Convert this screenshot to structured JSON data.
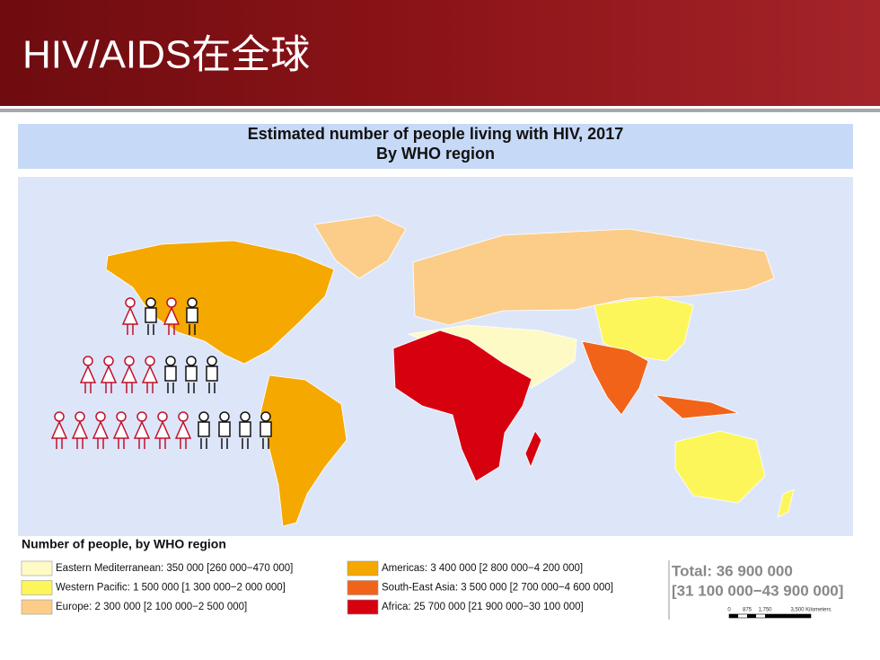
{
  "header": {
    "title": "HIV/AIDS在全球"
  },
  "map": {
    "title": "Estimated number of people living with HIV, 2017",
    "subtitle": "By WHO region",
    "legend_title": "Number of people, by WHO region",
    "legend": [
      {
        "label": "Eastern Mediterranean: 350 000 [260 000−470 000]",
        "color": "#fefac6"
      },
      {
        "label": "Western Pacific: 1 500 000 [1 300 000−2 000 000]",
        "color": "#fdf65a"
      },
      {
        "label": "Europe: 2 300 000 [2 100 000−2 500 000]",
        "color": "#fbcd88"
      },
      {
        "label": "Americas: 3 400 000 [2 800 000−4 200 000]",
        "color": "#f5a800"
      },
      {
        "label": "South-East Asia: 3 500 000 [2 700 000−4 600 000]",
        "color": "#f2631a"
      },
      {
        "label": "Africa: 25 700 000 [21 900 000−30 100 000]",
        "color": "#d7000f"
      }
    ],
    "total": "Total: 36 900 000",
    "total_range": "[31 100 000−43 900 000]",
    "scale_labels": [
      "0",
      "875",
      "1,750",
      "3,500 Kilometers"
    ]
  }
}
